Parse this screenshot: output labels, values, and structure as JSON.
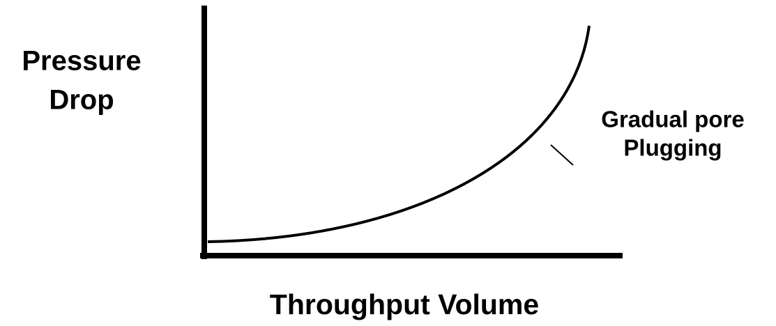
{
  "y_axis_label": [
    "Pressure",
    "Drop"
  ],
  "x_axis_label": "Throughput Volume",
  "annotation": [
    "Gradual pore",
    "Plugging"
  ]
}
